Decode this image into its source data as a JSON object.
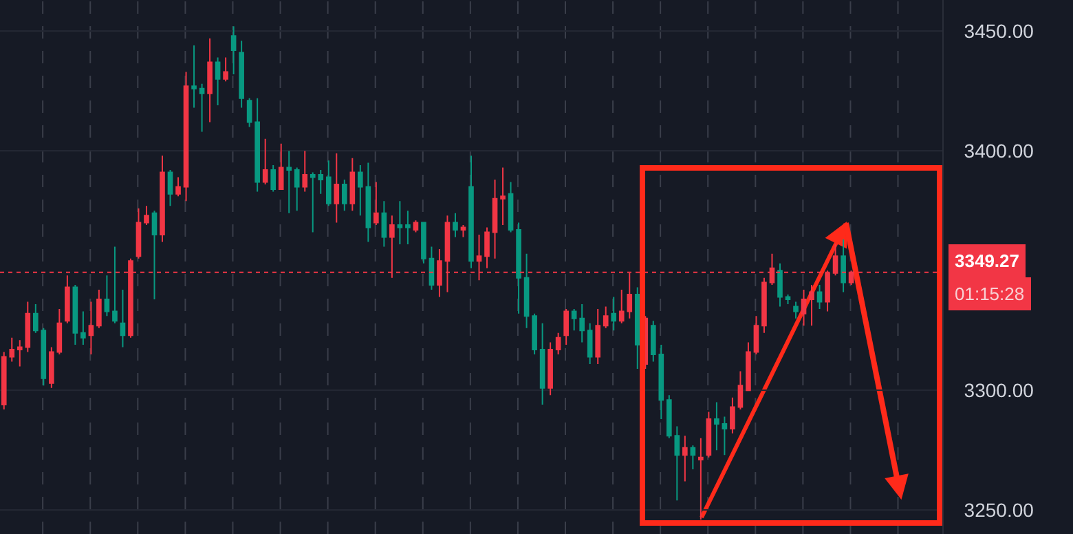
{
  "chart_data": {
    "type": "candlestick",
    "categories": [
      null,
      null,
      null,
      null,
      null,
      null,
      null,
      null,
      null,
      null,
      null,
      null,
      null,
      null,
      null,
      null,
      null,
      null,
      null,
      null,
      null,
      null,
      null,
      null,
      null,
      null,
      null,
      null,
      null,
      null,
      null,
      null,
      null,
      null,
      null,
      null,
      null,
      null,
      null,
      null,
      null,
      null,
      null,
      null,
      null,
      null,
      null,
      null,
      null,
      null,
      null,
      null,
      null,
      null,
      null,
      null,
      null,
      null,
      null,
      null,
      null,
      null,
      null,
      null,
      null,
      null,
      null,
      null,
      null,
      null,
      null,
      null,
      null,
      null,
      null,
      null,
      null,
      null,
      null,
      null,
      null,
      null,
      null,
      null,
      null,
      null,
      null,
      null,
      null,
      null,
      null,
      null,
      null,
      null,
      null,
      null,
      null,
      null,
      null,
      null,
      null,
      null,
      null,
      null,
      null,
      null,
      null,
      null,
      null,
      null,
      null,
      null,
      null,
      null,
      null,
      null,
      null,
      null,
      null
    ],
    "ohlc": [
      [
        3294,
        3316,
        3292,
        3314
      ],
      [
        3314,
        3322,
        3312,
        3317
      ],
      [
        3317,
        3321,
        3310,
        3318
      ],
      [
        3318,
        3337,
        3316,
        3332
      ],
      [
        3332,
        3336,
        3324,
        3325
      ],
      [
        3325,
        3326,
        3302,
        3305
      ],
      [
        3303,
        3318,
        3301,
        3316
      ],
      [
        3316,
        3334,
        3315,
        3328
      ],
      [
        3329,
        3348,
        3328,
        3343
      ],
      [
        3343,
        3344,
        3319,
        3324
      ],
      [
        3324,
        3333,
        3319,
        3322
      ],
      [
        3323,
        3337,
        3315,
        3327
      ],
      [
        3327,
        3342,
        3326,
        3338
      ],
      [
        3338,
        3348,
        3331,
        3333
      ],
      [
        3333,
        3360,
        3328,
        3329
      ],
      [
        3328,
        3342,
        3318,
        3323
      ],
      [
        3323,
        3355,
        3322,
        3354
      ],
      [
        3356,
        3376,
        3355,
        3370
      ],
      [
        3370,
        3377,
        3369,
        3373
      ],
      [
        3374,
        3375,
        3338,
        3365
      ],
      [
        3365,
        3398,
        3362,
        3391
      ],
      [
        3391,
        3392,
        3377,
        3382
      ],
      [
        3382,
        3389,
        3381,
        3385
      ],
      [
        3385,
        3433,
        3379,
        3427
      ],
      [
        3427,
        3444,
        3418,
        3426
      ],
      [
        3426,
        3428,
        3408,
        3424
      ],
      [
        3424,
        3447,
        3412,
        3437
      ],
      [
        3437,
        3439,
        3419,
        3430
      ],
      [
        3430,
        3439,
        3429,
        3433
      ],
      [
        3448,
        3452,
        3432,
        3442
      ],
      [
        3441,
        3446,
        3418,
        3422
      ],
      [
        3421,
        3422,
        3410,
        3412
      ],
      [
        3412,
        3422,
        3383,
        3387
      ],
      [
        3387,
        3405,
        3386,
        3392
      ],
      [
        3392,
        3394,
        3383,
        3384
      ],
      [
        3384,
        3403,
        3384,
        3393
      ],
      [
        3393,
        3400,
        3374,
        3392
      ],
      [
        3392,
        3393,
        3375,
        3385
      ],
      [
        3385,
        3400,
        3383,
        3390
      ],
      [
        3390,
        3391,
        3366,
        3389
      ],
      [
        3390,
        3392,
        3382,
        3388
      ],
      [
        3389,
        3396,
        3377,
        3378
      ],
      [
        3378,
        3399,
        3370,
        3386
      ],
      [
        3386,
        3388,
        3375,
        3378
      ],
      [
        3378,
        3397,
        3375,
        3391
      ],
      [
        3391,
        3394,
        3373,
        3385
      ],
      [
        3385,
        3395,
        3362,
        3368
      ],
      [
        3370,
        3387,
        3369,
        3374
      ],
      [
        3374,
        3379,
        3360,
        3364
      ],
      [
        3364,
        3373,
        3347,
        3369
      ],
      [
        3369,
        3379,
        3361,
        3368
      ],
      [
        3369,
        3375,
        3361,
        3368
      ],
      [
        3367,
        3371,
        3366,
        3370
      ],
      [
        3370,
        3370,
        3353,
        3355
      ],
      [
        3355,
        3360,
        3342,
        3344
      ],
      [
        3344,
        3359,
        3339,
        3354
      ],
      [
        3354,
        3373,
        3341,
        3370
      ],
      [
        3370,
        3374,
        3364,
        3367
      ],
      [
        3367,
        3369,
        3364,
        3368
      ],
      [
        3385,
        3398,
        3351,
        3354
      ],
      [
        3354,
        3365,
        3346,
        3356
      ],
      [
        3356,
        3368,
        3351,
        3366
      ],
      [
        3366,
        3388,
        3355,
        3380
      ],
      [
        3380,
        3393,
        3369,
        3381
      ],
      [
        3382,
        3387,
        3366,
        3367
      ],
      [
        3367,
        3370,
        3332,
        3347
      ],
      [
        3347,
        3357,
        3326,
        3331
      ],
      [
        3331,
        3332,
        3315,
        3317
      ],
      [
        3317,
        3328,
        3294,
        3301
      ],
      [
        3301,
        3320,
        3298,
        3317
      ],
      [
        3317,
        3324,
        3315,
        3322
      ],
      [
        3323,
        3334,
        3319,
        3333
      ],
      [
        3333,
        3334,
        3325,
        3330
      ],
      [
        3330,
        3336,
        3320,
        3325
      ],
      [
        3325,
        3328,
        3311,
        3314
      ],
      [
        3314,
        3334,
        3311,
        3327
      ],
      [
        3327,
        3335,
        3326,
        3331
      ],
      [
        3332,
        3339,
        3325,
        3329
      ],
      [
        3329,
        3342,
        3328,
        3333
      ],
      [
        3333,
        3349,
        3330,
        3340
      ],
      [
        3340,
        3343,
        3309,
        3319
      ],
      [
        3311,
        3331,
        3309,
        3330
      ],
      [
        3327,
        3329,
        3312,
        3315
      ],
      [
        3315,
        3319,
        3288,
        3296
      ],
      [
        3296,
        3298,
        3280,
        3281
      ],
      [
        3281,
        3285,
        3254,
        3273
      ],
      [
        3273,
        3281,
        3262,
        3276
      ],
      [
        3276,
        3277,
        3267,
        3273
      ],
      [
        3271,
        3280,
        3246,
        3272
      ],
      [
        3273,
        3291,
        3272,
        3288
      ],
      [
        3288,
        3295,
        3275,
        3286
      ],
      [
        3286,
        3289,
        3273,
        3284
      ],
      [
        3284,
        3297,
        3282,
        3293
      ],
      [
        3293,
        3308,
        3292,
        3302
      ],
      [
        3300,
        3320,
        3300,
        3316
      ],
      [
        3316,
        3331,
        3315,
        3327
      ],
      [
        3327,
        3347,
        3324,
        3345
      ],
      [
        3345,
        3357,
        3344,
        3351
      ],
      [
        3350,
        3353,
        3335,
        3339
      ],
      [
        3339,
        3340,
        3336,
        3338
      ],
      [
        3335,
        3337,
        3330,
        3333
      ],
      [
        3332,
        3342,
        3327,
        3338
      ],
      [
        3338,
        3344,
        3327,
        3341
      ],
      [
        3341,
        3344,
        3334,
        3337
      ],
      [
        3337,
        3350,
        3333,
        3349
      ],
      [
        3349,
        3361,
        3348,
        3356
      ],
      [
        3356,
        3363,
        3341,
        3345
      ],
      [
        3345,
        3350,
        3344,
        3349.27
      ],
      null,
      null,
      null,
      null,
      null,
      null,
      null,
      null,
      null,
      null,
      null
    ],
    "colors": [
      "#f23645",
      "#f23645",
      "#f23645",
      "#f23645",
      "#089981",
      "#089981",
      "#f23645",
      "#f23645",
      "#f23645",
      "#089981",
      "#089981",
      "#f23645",
      "#f23645",
      "#089981",
      "#089981",
      "#089981",
      "#f23645",
      "#f23645",
      "#f23645",
      "#089981",
      "#f23645",
      "#089981",
      "#f23645",
      "#f23645",
      "#089981",
      "#089981",
      "#f23645",
      "#089981",
      "#f23645",
      "#089981",
      "#089981",
      "#089981",
      "#089981",
      "#f23645",
      "#089981",
      "#f23645",
      "#089981",
      "#089981",
      "#f23645",
      "#089981",
      "#089981",
      "#089981",
      "#f23645",
      "#089981",
      "#f23645",
      "#089981",
      "#089981",
      "#f23645",
      "#089981",
      "#f23645",
      "#089981",
      "#089981",
      "#f23645",
      "#089981",
      "#089981",
      "#f23645",
      "#f23645",
      "#089981",
      "#f23645",
      "#089981",
      "#f23645",
      "#f23645",
      "#f23645",
      "#f23645",
      "#089981",
      "#089981",
      "#089981",
      "#089981",
      "#089981",
      "#f23645",
      "#f23645",
      "#f23645",
      "#089981",
      "#089981",
      "#089981",
      "#f23645",
      "#f23645",
      "#089981",
      "#f23645",
      "#f23645",
      "#089981",
      "#f23645",
      "#089981",
      "#089981",
      "#089981",
      "#089981",
      "#f23645",
      "#089981",
      "#f23645",
      "#f23645",
      "#089981",
      "#089981",
      "#f23645",
      "#f23645",
      "#f23645",
      "#f23645",
      "#f23645",
      "#f23645",
      "#089981",
      "#089981",
      "#089981",
      "#f23645",
      "#f23645",
      "#089981",
      "#f23645",
      "#f23645",
      "#089981",
      "#f23645",
      null,
      null,
      null,
      null,
      null,
      null,
      null,
      null,
      null,
      null,
      null
    ],
    "ylim": [
      3240,
      3463
    ],
    "yticks": [
      {
        "value": 3250,
        "label": "3250.00"
      },
      {
        "value": 3300,
        "label": "3300.00"
      },
      {
        "value": 3400,
        "label": "3400.00"
      },
      {
        "value": 3450,
        "label": "3450.00"
      }
    ],
    "tick_labels": "y",
    "grid": true,
    "ref_lines": [
      {
        "axis": "y",
        "value": 3349.27,
        "label": "3349.27",
        "color": "#f23645",
        "line_style": "dotted"
      }
    ],
    "annotations": [
      "01:15:28"
    ]
  }
}
